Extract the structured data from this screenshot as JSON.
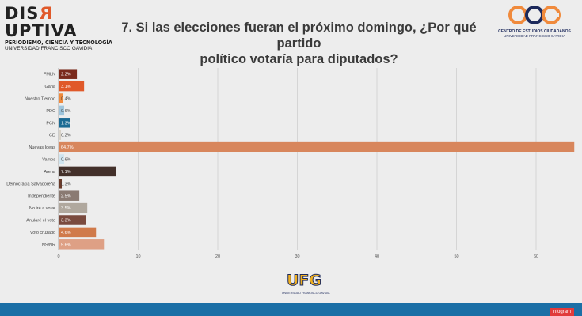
{
  "header": {
    "brand_left": "DISRUPTIVA",
    "brand_left_sub1": "PERIODISMO, CIENCIA Y TECNOLOGÍA",
    "brand_left_sub2": "UNIVERSIDAD FRANCISCO GAVIDIA",
    "title_line1": "7. Si las elecciones fueran el próximo domingo, ¿Por qué partido",
    "title_line2": "político votaría para diputados?",
    "logo_right_mark": "cec",
    "logo_right_line1": "CENTRO DE ESTUDIOS CIUDADANOS",
    "logo_right_line2": "UNIVERSIDAD FRANCISCO GAVIDIA"
  },
  "footer": {
    "logo_text": "UFG",
    "logo_sub": "UNIVERSIDAD FRANCISCO GAVIDIA",
    "badge": "infogram"
  },
  "colors": {
    "background": "#ededed",
    "footer": "#1b6fa6",
    "badge": "#e13b3b"
  },
  "chart_data": {
    "type": "bar",
    "orientation": "horizontal",
    "categories": [
      "FMLN",
      "Gana",
      "Nuestro Tiempo",
      "PDC",
      "PCN",
      "CD",
      "Nuevas Ideas",
      "Vamos",
      "Arena",
      "Democracia Salvadoreña",
      "Independiente",
      "No iré a votar",
      "Anularé el voto",
      "Voto cruzado",
      "NS/NR"
    ],
    "values": [
      2.2,
      3.1,
      0.4,
      0.6,
      1.3,
      0.2,
      64.7,
      0.6,
      7.1,
      0.3,
      2.5,
      3.5,
      3.3,
      4.6,
      5.6
    ],
    "data_labels": [
      "2.2%",
      "3.1%",
      "0.4%",
      "0.6%",
      "1.3%",
      "0.2%",
      "64.7%",
      "0.6%",
      "7.1%",
      "0.3%",
      "2.5%",
      "3.5%",
      "3.3%",
      "4.6%",
      "5.6%"
    ],
    "colors": [
      "#7a2a1c",
      "#e0592a",
      "#f08a3c",
      "#9fc5dc",
      "#1b6a93",
      "#d8d2c8",
      "#d8865c",
      "#cfe4ef",
      "#43302a",
      "#6a3a2a",
      "#8a7a72",
      "#b0a89e",
      "#7a4a3e",
      "#d07a4a",
      "#dea085"
    ],
    "xticks": [
      0,
      10,
      20,
      30,
      40,
      50,
      60
    ],
    "xlim": [
      0,
      65
    ],
    "grid": true
  }
}
